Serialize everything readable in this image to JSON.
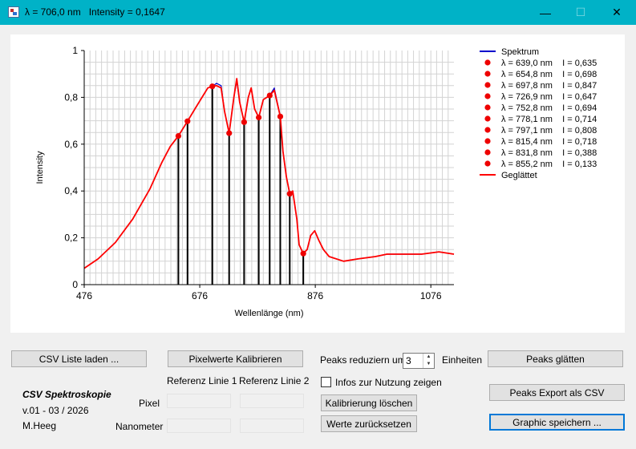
{
  "window": {
    "title": "λ = 706,0 nm   Intensity = 0,1647",
    "minimize_icon": "—",
    "maximize_icon": "☐",
    "close_icon": "✕"
  },
  "chart_data": {
    "type": "line",
    "xlabel": "Wellenlänge (nm)",
    "ylabel": "Intensity",
    "xlim": [
      476,
      1116
    ],
    "ylim": [
      0,
      1
    ],
    "x_ticks": [
      "476",
      "676",
      "876",
      "1076"
    ],
    "y_ticks": [
      "0",
      "0,2",
      "0,4",
      "0,6",
      "0,8",
      "1"
    ],
    "grid": true,
    "legend_position": "right",
    "series": [
      {
        "name": "Spektrum",
        "color": "#0000cc",
        "x": [
          476,
          500,
          530,
          560,
          590,
          610,
          625,
          639,
          654.8,
          670,
          680,
          690,
          697.8,
          705,
          713,
          719,
          726.9,
          735,
          740,
          745,
          752.8,
          760,
          765,
          771,
          778.1,
          786,
          797.1,
          805,
          815.4,
          820,
          826,
          831.8,
          837,
          844,
          848,
          855.2,
          862,
          868,
          875,
          882,
          890,
          900,
          925,
          950,
          980,
          1000,
          1030,
          1060,
          1090,
          1116
        ],
        "y": [
          0.07,
          0.11,
          0.18,
          0.28,
          0.41,
          0.52,
          0.59,
          0.635,
          0.698,
          0.76,
          0.8,
          0.84,
          0.847,
          0.86,
          0.85,
          0.74,
          0.647,
          0.8,
          0.87,
          0.78,
          0.694,
          0.8,
          0.84,
          0.75,
          0.714,
          0.79,
          0.808,
          0.84,
          0.718,
          0.57,
          0.46,
          0.388,
          0.4,
          0.28,
          0.17,
          0.133,
          0.15,
          0.21,
          0.23,
          0.19,
          0.15,
          0.12,
          0.1,
          0.11,
          0.12,
          0.13,
          0.13,
          0.13,
          0.14,
          0.13
        ]
      },
      {
        "name": "Geglättet",
        "color": "#ff0000",
        "x": [
          476,
          500,
          530,
          560,
          590,
          610,
          625,
          639,
          654.8,
          670,
          680,
          690,
          697.8,
          705,
          713,
          719,
          726.9,
          735,
          740,
          745,
          752.8,
          760,
          765,
          771,
          778.1,
          786,
          797.1,
          805,
          815.4,
          820,
          826,
          831.8,
          837,
          844,
          848,
          855.2,
          862,
          868,
          875,
          882,
          890,
          900,
          925,
          950,
          980,
          1000,
          1030,
          1060,
          1090,
          1116
        ],
        "y": [
          0.07,
          0.11,
          0.18,
          0.28,
          0.41,
          0.52,
          0.59,
          0.635,
          0.698,
          0.76,
          0.8,
          0.84,
          0.847,
          0.85,
          0.84,
          0.74,
          0.647,
          0.8,
          0.88,
          0.78,
          0.694,
          0.8,
          0.84,
          0.75,
          0.714,
          0.79,
          0.808,
          0.83,
          0.718,
          0.57,
          0.46,
          0.388,
          0.4,
          0.28,
          0.17,
          0.133,
          0.15,
          0.21,
          0.23,
          0.19,
          0.15,
          0.12,
          0.1,
          0.11,
          0.12,
          0.13,
          0.13,
          0.13,
          0.14,
          0.13
        ]
      }
    ],
    "peaks": [
      {
        "x": 639.0,
        "y": 0.635,
        "label": "λ = 639,0 nm    I = 0,635"
      },
      {
        "x": 654.8,
        "y": 0.698,
        "label": "λ = 654,8 nm    I = 0,698"
      },
      {
        "x": 697.8,
        "y": 0.847,
        "label": "λ = 697,8 nm    I = 0,847"
      },
      {
        "x": 726.9,
        "y": 0.647,
        "label": "λ = 726,9 nm    I = 0,647"
      },
      {
        "x": 752.8,
        "y": 0.694,
        "label": "λ = 752,8 nm    I = 0,694"
      },
      {
        "x": 778.1,
        "y": 0.714,
        "label": "λ = 778,1 nm    I = 0,714"
      },
      {
        "x": 797.1,
        "y": 0.808,
        "label": "λ = 797,1 nm    I = 0,808"
      },
      {
        "x": 815.4,
        "y": 0.718,
        "label": "λ = 815,4 nm    I = 0,718"
      },
      {
        "x": 831.8,
        "y": 0.388,
        "label": "λ = 831,8 nm    I = 0,388"
      },
      {
        "x": 855.2,
        "y": 0.133,
        "label": "λ = 855,2 nm    I = 0,133"
      }
    ],
    "peak_color": "#ee0000"
  },
  "controls": {
    "csv_load": "CSV Liste laden ...",
    "calibrate": "Pixelwerte Kalibrieren",
    "peaks_reduce_label": "Peaks reduziern um",
    "peaks_reduce_value": "3",
    "units_label": "Einheiten",
    "smooth": "Peaks glätten",
    "ref1": "Referenz Linie 1",
    "ref2": "Referenz Linie 2",
    "show_info": "Infos zur Nutzung zeigen",
    "export_csv": "Peaks Export als CSV",
    "pixel_label": "Pixel",
    "nanometer_label": "Nanometer",
    "clear_cal": "Kalibrierung löschen",
    "reset": "Werte zurücksetzen",
    "save_graphic": "Graphic speichern ..."
  },
  "app_info": {
    "name": "CSV Spektroskopie",
    "version": "v.01 - 03 / 2026",
    "author": "M.Heeg"
  }
}
